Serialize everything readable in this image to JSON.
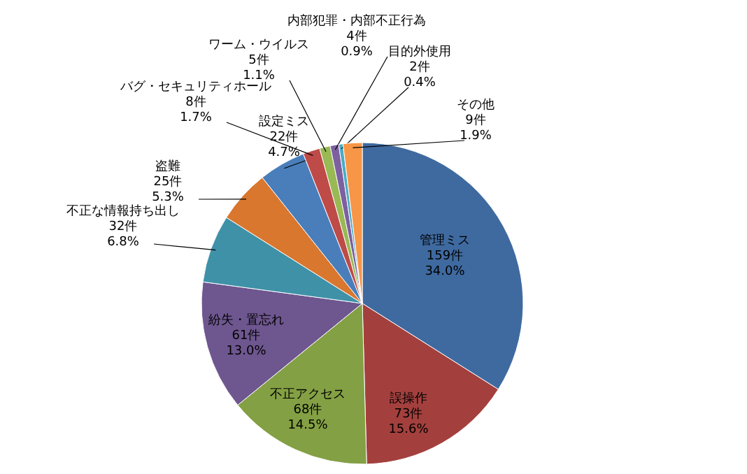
{
  "chart_data": {
    "type": "pie",
    "categories": [
      "管理ミス",
      "誤操作",
      "不正アクセス",
      "紛失・置忘れ",
      "不正な情報持ち出し",
      "盗難",
      "設定ミス",
      "バグ・セキュリティホール",
      "ワーム・ウイルス",
      "内部犯罪・内部不正行為",
      "目的外使用",
      "その他"
    ],
    "values": [
      159,
      73,
      68,
      61,
      32,
      25,
      22,
      8,
      5,
      4,
      2,
      9
    ],
    "value_labels": [
      "159件\n34.0%",
      "73件\n15.6%",
      "68件\n14.5%",
      "61件\n13.0%",
      "32件\n6.8%",
      "25件\n5.3%",
      "22件\n4.7%",
      "8件\n1.7%",
      "5件\n1.1%",
      "4件\n0.9%",
      "2件\n0.4%",
      "9件\n1.9%"
    ],
    "colors": [
      "#3f6aa0",
      "#a3403d",
      "#83a044",
      "#6e568f",
      "#3f91a8",
      "#d9772f",
      "#4a7ebb",
      "#be4b48",
      "#98b954",
      "#7d60a0",
      "#4bacc6",
      "#f79646"
    ]
  }
}
